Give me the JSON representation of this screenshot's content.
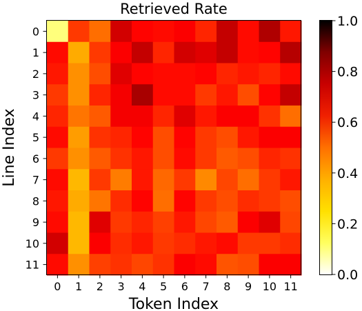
{
  "chart_data": {
    "type": "heatmap",
    "title": "Retrieved Rate",
    "xlabel": "Token Index",
    "ylabel": "Line Index",
    "x_categories": [
      "0",
      "1",
      "2",
      "3",
      "4",
      "5",
      "6",
      "7",
      "8",
      "9",
      "10",
      "11"
    ],
    "y_categories": [
      "0",
      "1",
      "2",
      "3",
      "4",
      "5",
      "6",
      "7",
      "8",
      "9",
      "10",
      "11"
    ],
    "values": [
      [
        0.13,
        0.55,
        0.47,
        0.7,
        0.63,
        0.62,
        0.64,
        0.58,
        0.72,
        0.62,
        0.75,
        0.6
      ],
      [
        0.62,
        0.38,
        0.55,
        0.64,
        0.72,
        0.58,
        0.7,
        0.68,
        0.72,
        0.62,
        0.63,
        0.74
      ],
      [
        0.6,
        0.42,
        0.52,
        0.68,
        0.63,
        0.62,
        0.62,
        0.63,
        0.58,
        0.6,
        0.58,
        0.62
      ],
      [
        0.55,
        0.42,
        0.58,
        0.65,
        0.76,
        0.62,
        0.62,
        0.55,
        0.6,
        0.52,
        0.63,
        0.72
      ],
      [
        0.58,
        0.46,
        0.5,
        0.65,
        0.65,
        0.58,
        0.68,
        0.6,
        0.64,
        0.64,
        0.56,
        0.47
      ],
      [
        0.62,
        0.4,
        0.56,
        0.58,
        0.63,
        0.52,
        0.63,
        0.55,
        0.52,
        0.6,
        0.64,
        0.64
      ],
      [
        0.55,
        0.42,
        0.5,
        0.56,
        0.6,
        0.52,
        0.62,
        0.55,
        0.5,
        0.52,
        0.58,
        0.56
      ],
      [
        0.62,
        0.36,
        0.55,
        0.45,
        0.6,
        0.48,
        0.55,
        0.43,
        0.53,
        0.47,
        0.55,
        0.6
      ],
      [
        0.6,
        0.38,
        0.46,
        0.57,
        0.63,
        0.47,
        0.63,
        0.55,
        0.52,
        0.57,
        0.55,
        0.52
      ],
      [
        0.62,
        0.36,
        0.68,
        0.55,
        0.58,
        0.54,
        0.6,
        0.53,
        0.5,
        0.64,
        0.68,
        0.53
      ],
      [
        0.7,
        0.36,
        0.64,
        0.57,
        0.6,
        0.55,
        0.57,
        0.6,
        0.62,
        0.55,
        0.55,
        0.57
      ],
      [
        0.62,
        0.42,
        0.54,
        0.56,
        0.53,
        0.56,
        0.64,
        0.62,
        0.51,
        0.52,
        0.64,
        0.64
      ]
    ],
    "colormap": "hot_r",
    "vmin": 0.0,
    "vmax": 1.0,
    "colorbar_ticks": [
      "0.0",
      "0.2",
      "0.4",
      "0.6",
      "0.8",
      "1.0"
    ],
    "colorbar_tick_values": [
      0.0,
      0.2,
      0.4,
      0.6,
      0.8,
      1.0
    ]
  }
}
